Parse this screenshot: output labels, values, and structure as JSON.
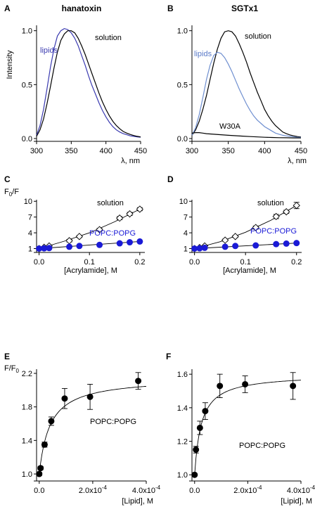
{
  "figure": {
    "panels": [
      "A",
      "B",
      "C",
      "D",
      "E",
      "F"
    ]
  },
  "chart_data": [
    {
      "id": "A",
      "type": "line",
      "title": "hanatoxin",
      "xlabel": "λ, nm",
      "ylabel": "Intensity",
      "xlim": [
        300,
        450
      ],
      "ylim": [
        0,
        1.05
      ],
      "xticks": [
        300,
        350,
        400,
        450
      ],
      "yticks": [
        0.0,
        0.5,
        1.0
      ],
      "xticklabels": [
        "300",
        "350",
        "400",
        "450"
      ],
      "yticklabels": [
        "0.0",
        "0.5",
        "1.0"
      ],
      "series": [
        {
          "name": "lipids",
          "color": "#3a3ab0",
          "x": [
            300,
            305,
            310,
            315,
            320,
            325,
            330,
            335,
            340,
            345,
            350,
            355,
            360,
            365,
            370,
            375,
            380,
            385,
            390,
            395,
            400,
            405,
            410,
            415,
            420,
            425,
            430,
            435,
            440,
            445,
            450
          ],
          "y": [
            0.03,
            0.12,
            0.27,
            0.46,
            0.66,
            0.83,
            0.95,
            1.0,
            1.02,
            1.01,
            0.98,
            0.93,
            0.86,
            0.77,
            0.68,
            0.58,
            0.49,
            0.41,
            0.33,
            0.26,
            0.2,
            0.15,
            0.11,
            0.08,
            0.06,
            0.045,
            0.035,
            0.025,
            0.02,
            0.015,
            0.012
          ]
        },
        {
          "name": "solution",
          "color": "#000000",
          "x": [
            300,
            305,
            310,
            315,
            320,
            325,
            330,
            335,
            340,
            345,
            350,
            355,
            360,
            365,
            370,
            375,
            380,
            385,
            390,
            395,
            400,
            405,
            410,
            415,
            420,
            425,
            430,
            435,
            440,
            445,
            450
          ],
          "y": [
            0.02,
            0.08,
            0.18,
            0.32,
            0.48,
            0.65,
            0.8,
            0.91,
            0.97,
            1.0,
            1.0,
            0.98,
            0.93,
            0.86,
            0.78,
            0.69,
            0.6,
            0.51,
            0.42,
            0.34,
            0.27,
            0.21,
            0.16,
            0.12,
            0.09,
            0.065,
            0.05,
            0.038,
            0.028,
            0.02,
            0.015
          ]
        }
      ],
      "annotations": [
        "lipids",
        "solution"
      ]
    },
    {
      "id": "B",
      "type": "line",
      "title": "SGTx1",
      "xlabel": "λ, nm",
      "ylabel": "",
      "xlim": [
        300,
        450
      ],
      "ylim": [
        0,
        1.05
      ],
      "xticks": [
        300,
        350,
        400,
        450
      ],
      "yticks": [
        0.0,
        0.5,
        1.0
      ],
      "xticklabels": [
        "300",
        "350",
        "400",
        "450"
      ],
      "yticklabels": [
        "0.0",
        "0.5",
        "1.0"
      ],
      "series": [
        {
          "name": "solution",
          "color": "#000000",
          "x": [
            300,
            305,
            310,
            315,
            320,
            325,
            330,
            335,
            340,
            345,
            350,
            355,
            360,
            365,
            370,
            375,
            380,
            385,
            390,
            395,
            400,
            405,
            410,
            415,
            420,
            425,
            430,
            435,
            440,
            445,
            450
          ],
          "y": [
            0.03,
            0.08,
            0.16,
            0.27,
            0.4,
            0.55,
            0.7,
            0.83,
            0.93,
            0.99,
            1.0,
            0.99,
            0.95,
            0.88,
            0.8,
            0.71,
            0.61,
            0.52,
            0.43,
            0.35,
            0.27,
            0.21,
            0.16,
            0.12,
            0.09,
            0.06,
            0.045,
            0.033,
            0.025,
            0.018,
            0.014
          ]
        },
        {
          "name": "lipids",
          "color": "#6f8fd0",
          "x": [
            300,
            305,
            310,
            315,
            320,
            325,
            330,
            335,
            340,
            345,
            350,
            355,
            360,
            365,
            370,
            375,
            380,
            385,
            390,
            395,
            400,
            405,
            410,
            415,
            420,
            425,
            430,
            435,
            440,
            445,
            450
          ],
          "y": [
            0.03,
            0.1,
            0.22,
            0.38,
            0.55,
            0.68,
            0.77,
            0.8,
            0.79,
            0.75,
            0.69,
            0.62,
            0.54,
            0.46,
            0.39,
            0.32,
            0.26,
            0.21,
            0.17,
            0.14,
            0.11,
            0.09,
            0.07,
            0.05,
            0.04,
            0.03,
            0.025,
            0.02,
            0.015,
            0.012,
            0.01
          ]
        },
        {
          "name": "W30A",
          "color": "#000000",
          "x": [
            300,
            305,
            310,
            315,
            320,
            330,
            340,
            350,
            360,
            370,
            380,
            390,
            400,
            410,
            420,
            430,
            440,
            450
          ],
          "y": [
            0.05,
            0.055,
            0.055,
            0.05,
            0.045,
            0.04,
            0.035,
            0.03,
            0.026,
            0.022,
            0.018,
            0.015,
            0.012,
            0.01,
            0.008,
            0.007,
            0.006,
            0.005
          ]
        }
      ],
      "annotations": [
        "solution",
        "lipids",
        "W30A"
      ]
    },
    {
      "id": "C",
      "type": "scatter",
      "title": "",
      "xlabel": "[Acrylamide], M",
      "ylabel": "F0/F",
      "ylabel_main": "F",
      "ylabel_sub": "0",
      "ylabel_tail": "/F",
      "xlim": [
        -0.005,
        0.21
      ],
      "ylim": [
        0.8,
        10.3
      ],
      "xticks": [
        0.0,
        0.1,
        0.2
      ],
      "yticks": [
        1,
        4,
        7,
        10
      ],
      "xticklabels": [
        "0.0",
        "0.1",
        "0.2"
      ],
      "yticklabels": [
        "1",
        "4",
        "7",
        "10"
      ],
      "series": [
        {
          "name": "solution",
          "marker": "open-diamond",
          "color": "#000000",
          "x": [
            0,
            0.01,
            0.02,
            0.06,
            0.08,
            0.12,
            0.16,
            0.18,
            0.2
          ],
          "y": [
            1.0,
            1.25,
            1.5,
            2.5,
            3.3,
            4.6,
            6.8,
            7.6,
            8.5
          ],
          "err": [
            0.05,
            0.05,
            0.08,
            0.25,
            0.2,
            0.25,
            0.3,
            0.3,
            0.3
          ],
          "fit_x": [
            0,
            0.05,
            0.1,
            0.15,
            0.2
          ],
          "fit_y": [
            1.0,
            2.4,
            4.0,
            6.1,
            8.5
          ]
        },
        {
          "name": "POPC:POPG",
          "marker": "filled-circle",
          "color": "#1a1ad6",
          "x": [
            0,
            0.01,
            0.02,
            0.06,
            0.08,
            0.12,
            0.16,
            0.18,
            0.2
          ],
          "y": [
            1.0,
            1.05,
            1.1,
            1.35,
            1.5,
            1.7,
            2.0,
            2.2,
            2.35
          ],
          "err": [
            0.03,
            0.03,
            0.04,
            0.05,
            0.05,
            0.06,
            0.06,
            0.06,
            0.08
          ],
          "fit_x": [
            0,
            0.2
          ],
          "fit_y": [
            1.0,
            2.35
          ]
        }
      ],
      "annotations": [
        "solution",
        "POPC:POPG"
      ]
    },
    {
      "id": "D",
      "type": "scatter",
      "title": "",
      "xlabel": "[Acrylamide], M",
      "ylabel": "",
      "xlim": [
        -0.005,
        0.21
      ],
      "ylim": [
        0.8,
        10.3
      ],
      "xticks": [
        0.0,
        0.1,
        0.2
      ],
      "yticks": [
        1,
        4,
        7,
        10
      ],
      "xticklabels": [
        "0.0",
        "0.1",
        "0.2"
      ],
      "yticklabels": [
        "1",
        "4",
        "7",
        "10"
      ],
      "series": [
        {
          "name": "solution",
          "marker": "open-diamond",
          "color": "#000000",
          "x": [
            0,
            0.01,
            0.02,
            0.06,
            0.08,
            0.12,
            0.16,
            0.18,
            0.2
          ],
          "y": [
            1.0,
            1.2,
            1.5,
            2.6,
            3.3,
            5.0,
            7.1,
            8.0,
            9.2
          ],
          "err": [
            0.05,
            0.05,
            0.08,
            0.2,
            0.2,
            0.3,
            0.4,
            0.3,
            0.6
          ],
          "fit_x": [
            0,
            0.05,
            0.1,
            0.15,
            0.2
          ],
          "fit_y": [
            1.0,
            2.3,
            4.1,
            6.4,
            9.2
          ]
        },
        {
          "name": "POPC:POPG",
          "marker": "filled-circle",
          "color": "#1a1ad6",
          "x": [
            0,
            0.01,
            0.02,
            0.06,
            0.08,
            0.12,
            0.16,
            0.18,
            0.2
          ],
          "y": [
            1.0,
            1.05,
            1.15,
            1.35,
            1.5,
            1.6,
            1.85,
            1.95,
            2.05
          ],
          "err": [
            0.03,
            0.03,
            0.04,
            0.05,
            0.05,
            0.05,
            0.06,
            0.06,
            0.07
          ],
          "fit_x": [
            0,
            0.2
          ],
          "fit_y": [
            1.0,
            2.05
          ]
        }
      ],
      "annotations": [
        "solution",
        "POPC:POPG"
      ]
    },
    {
      "id": "E",
      "type": "scatter",
      "title": "",
      "xlabel": "[Lipid], M",
      "ylabel": "F/F0",
      "ylabel_main": "F/F",
      "ylabel_sub": "0",
      "ylabel_tail": "",
      "xlim": [
        -1e-05,
        0.0004
      ],
      "ylim": [
        0.95,
        2.25
      ],
      "xticks": [
        0.0,
        0.0002,
        0.0004
      ],
      "yticks": [
        1.0,
        1.4,
        1.8,
        2.2
      ],
      "xticklabels": [
        "0.0",
        "2.0x10-4",
        "4.0x10-4"
      ],
      "xtick_mant": [
        "0.0",
        "2.0x10",
        "4.0x10"
      ],
      "xtick_exp": [
        "",
        "-4",
        "-4"
      ],
      "yticklabels": [
        "1.0",
        "1.4",
        "1.8",
        "2.2"
      ],
      "series": [
        {
          "name": "POPC:POPG",
          "marker": "filled-circle",
          "color": "#000000",
          "x": [
            0,
            5e-06,
            2e-05,
            4.5e-05,
            9.5e-05,
            0.00019,
            0.00037
          ],
          "y": [
            1.0,
            1.07,
            1.35,
            1.63,
            1.9,
            1.92,
            2.11
          ],
          "err": [
            0.02,
            0.02,
            0.03,
            0.05,
            0.12,
            0.15,
            0.1
          ]
        }
      ],
      "fit": {
        "fmax": 2.15,
        "kd": 4e-05
      },
      "annotations": [
        "POPC:POPG"
      ]
    },
    {
      "id": "F",
      "type": "scatter",
      "title": "",
      "xlabel": "[Lipid], M",
      "ylabel": "",
      "xlim": [
        -1e-05,
        0.0004
      ],
      "ylim": [
        0.98,
        1.63
      ],
      "xticks": [
        0.0,
        0.0002,
        0.0004
      ],
      "yticks": [
        1.0,
        1.2,
        1.4,
        1.6
      ],
      "xticklabels": [
        "0.0",
        "2.0x10-4",
        "4.0x10-4"
      ],
      "xtick_mant": [
        "0.0",
        "2.0x10",
        "4.0x10"
      ],
      "xtick_exp": [
        "",
        "-4",
        "-4"
      ],
      "yticklabels": [
        "1.0",
        "1.2",
        "1.4",
        "1.6"
      ],
      "series": [
        {
          "name": "POPC:POPG",
          "marker": "filled-circle",
          "color": "#000000",
          "x": [
            0,
            5e-06,
            2e-05,
            4e-05,
            9.5e-05,
            0.00019,
            0.00037
          ],
          "y": [
            1.0,
            1.15,
            1.28,
            1.38,
            1.53,
            1.54,
            1.53
          ],
          "err": [
            0.0,
            0.02,
            0.04,
            0.05,
            0.07,
            0.05,
            0.08
          ]
        }
      ],
      "fit": {
        "fmax": 1.6,
        "kd": 2.5e-05
      },
      "annotations": [
        "POPC:POPG"
      ]
    }
  ]
}
